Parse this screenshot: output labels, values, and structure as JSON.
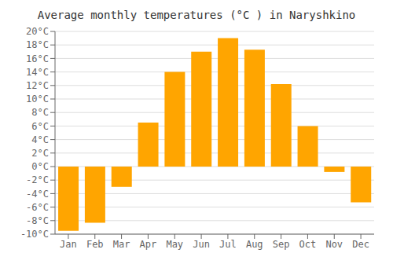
{
  "chart_data": {
    "type": "bar",
    "title": "Average monthly temperatures (°C ) in Naryshkino",
    "categories": [
      "Jan",
      "Feb",
      "Mar",
      "Apr",
      "May",
      "Jun",
      "Jul",
      "Aug",
      "Sep",
      "Oct",
      "Nov",
      "Dec"
    ],
    "values": [
      -9.5,
      -8.3,
      -3.0,
      6.5,
      14.0,
      17.0,
      19.0,
      17.3,
      12.2,
      6.0,
      -0.8,
      -5.3
    ],
    "color": "#FFA500",
    "ylim": [
      -10,
      20
    ],
    "yticks": [
      {
        "value": -10,
        "label": "-10°C"
      },
      {
        "value": -8,
        "label": "-8°C"
      },
      {
        "value": -6,
        "label": "-6°C"
      },
      {
        "value": -4,
        "label": "-4°C"
      },
      {
        "value": -2,
        "label": "-2°C"
      },
      {
        "value": 0,
        "label": "0°C"
      },
      {
        "value": 2,
        "label": "2°C"
      },
      {
        "value": 4,
        "label": "4°C"
      },
      {
        "value": 6,
        "label": "6°C"
      },
      {
        "value": 8,
        "label": "8°C"
      },
      {
        "value": 10,
        "label": "10°C"
      },
      {
        "value": 12,
        "label": "12°C"
      },
      {
        "value": 14,
        "label": "14°C"
      },
      {
        "value": 16,
        "label": "16°C"
      },
      {
        "value": 18,
        "label": "18°C"
      },
      {
        "value": 20,
        "label": "20°C"
      }
    ],
    "grid": true
  }
}
